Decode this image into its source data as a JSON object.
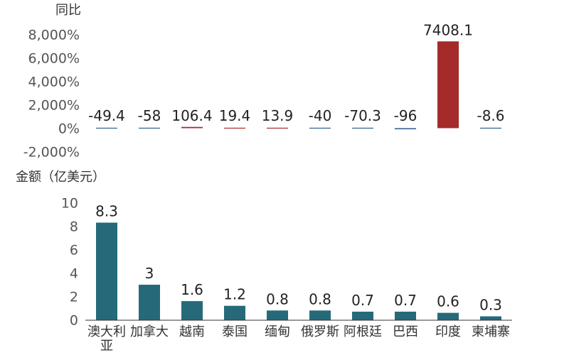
{
  "chart_data": [
    {
      "type": "bar",
      "ylabel": "同比",
      "ylim": [
        -2000,
        8000
      ],
      "yticks": [
        -2000,
        0,
        2000,
        4000,
        6000,
        8000
      ],
      "ytick_labels": [
        "-2,000%",
        "0%",
        "2,000%",
        "4,000%",
        "6,000%",
        "8,000%"
      ],
      "categories": [
        "澳大利亚",
        "加拿大",
        "越南",
        "泰国",
        "缅甸",
        "俄罗斯",
        "阿根廷",
        "巴西",
        "印度",
        "柬埔寨"
      ],
      "values": [
        -49.4,
        -58,
        106.4,
        19.4,
        13.9,
        -40,
        -70.3,
        -96,
        7408.1,
        -8.6
      ],
      "data_labels": [
        "-49.4",
        "-58",
        "106.4",
        "19.4",
        "13.9",
        "-40",
        "-70.3",
        "-96",
        "7408.1",
        "-8.6"
      ],
      "colors": {
        "positive": "#a52a2a",
        "negative": "#2f5e8e"
      }
    },
    {
      "type": "bar",
      "ylabel": "金额（亿美元）",
      "ylim": [
        0,
        10
      ],
      "yticks": [
        0,
        2,
        4,
        6,
        8,
        10
      ],
      "ytick_labels": [
        "0",
        "2",
        "4",
        "6",
        "8",
        "10"
      ],
      "categories": [
        "澳大利亚",
        "加拿大",
        "越南",
        "泰国",
        "缅甸",
        "俄罗斯",
        "阿根廷",
        "巴西",
        "印度",
        "柬埔寨"
      ],
      "category_lines": [
        [
          "澳大利",
          "亚"
        ],
        [
          "加拿大"
        ],
        [
          "越南"
        ],
        [
          "泰国"
        ],
        [
          "缅甸"
        ],
        [
          "俄罗斯"
        ],
        [
          "阿根廷"
        ],
        [
          "巴西"
        ],
        [
          "印度"
        ],
        [
          "柬埔寨"
        ]
      ],
      "values": [
        8.3,
        3,
        1.6,
        1.2,
        0.8,
        0.8,
        0.7,
        0.7,
        0.6,
        0.3
      ],
      "data_labels": [
        "8.3",
        "3",
        "1.6",
        "1.2",
        "0.8",
        "0.8",
        "0.7",
        "0.7",
        "0.6",
        "0.3"
      ],
      "colors": {
        "bar": "#266a7a"
      }
    }
  ]
}
